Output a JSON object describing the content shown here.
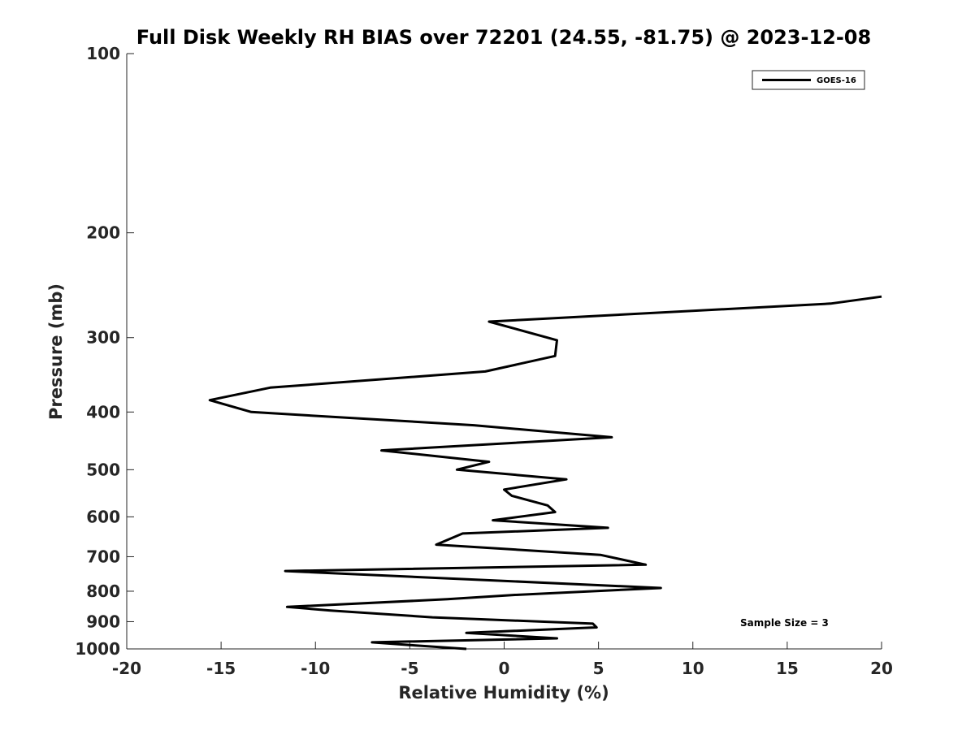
{
  "chart_data": {
    "type": "line",
    "title": "Full Disk Weekly RH BIAS over 72201 (24.55, -81.75) @ 2023-12-08",
    "xlabel": "Relative Humidity (%)",
    "ylabel": "Pressure (mb)",
    "xlim": [
      -20,
      20
    ],
    "ylim": [
      100,
      1000
    ],
    "yscale": "log",
    "yreversed": true,
    "x_ticks": [
      -20,
      -15,
      -10,
      -5,
      0,
      5,
      10,
      15,
      20
    ],
    "y_ticks": [
      100,
      200,
      300,
      400,
      500,
      600,
      700,
      800,
      900,
      1000
    ],
    "grid": false,
    "legend": {
      "placement": "top-right",
      "entries": [
        "GOES-16"
      ]
    },
    "annotation": "Sample Size = 3",
    "series": [
      {
        "name": "GOES-16",
        "color": "#000000",
        "points": [
          {
            "x": -2.0,
            "y": 1000
          },
          {
            "x": -5.0,
            "y": 985
          },
          {
            "x": -7.0,
            "y": 975
          },
          {
            "x": 2.8,
            "y": 960
          },
          {
            "x": -2.0,
            "y": 940
          },
          {
            "x": 4.9,
            "y": 920
          },
          {
            "x": 4.7,
            "y": 907
          },
          {
            "x": -3.8,
            "y": 885
          },
          {
            "x": -9.2,
            "y": 862
          },
          {
            "x": -11.5,
            "y": 850
          },
          {
            "x": -3.0,
            "y": 825
          },
          {
            "x": 0.4,
            "y": 812
          },
          {
            "x": 8.3,
            "y": 790
          },
          {
            "x": -11.6,
            "y": 740
          },
          {
            "x": 7.5,
            "y": 722
          },
          {
            "x": 5.1,
            "y": 695
          },
          {
            "x": -3.6,
            "y": 668
          },
          {
            "x": -2.2,
            "y": 640
          },
          {
            "x": 5.5,
            "y": 626
          },
          {
            "x": -0.6,
            "y": 608
          },
          {
            "x": 2.7,
            "y": 589
          },
          {
            "x": 2.3,
            "y": 574
          },
          {
            "x": 0.4,
            "y": 553
          },
          {
            "x": 0.0,
            "y": 540
          },
          {
            "x": 3.3,
            "y": 519
          },
          {
            "x": -2.5,
            "y": 500
          },
          {
            "x": -0.8,
            "y": 485
          },
          {
            "x": -6.5,
            "y": 464
          },
          {
            "x": 5.7,
            "y": 441
          },
          {
            "x": -1.6,
            "y": 421
          },
          {
            "x": -13.4,
            "y": 400
          },
          {
            "x": -15.6,
            "y": 382
          },
          {
            "x": -12.4,
            "y": 364
          },
          {
            "x": -1.0,
            "y": 342
          },
          {
            "x": 2.7,
            "y": 322
          },
          {
            "x": 2.8,
            "y": 303
          },
          {
            "x": -0.8,
            "y": 282
          },
          {
            "x": 17.3,
            "y": 263
          },
          {
            "x": 20.0,
            "y": 256
          }
        ]
      }
    ]
  }
}
